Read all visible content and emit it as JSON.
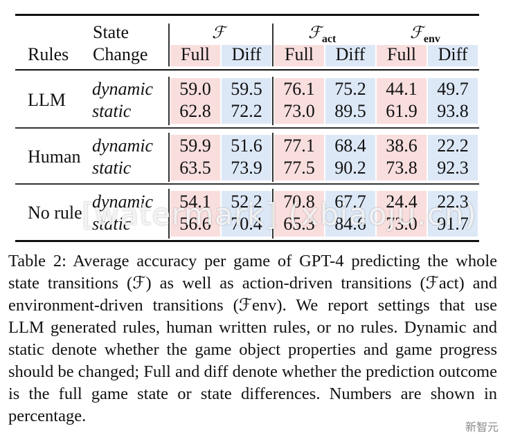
{
  "table": {
    "headers": {
      "rules": "Rules",
      "state_change_line1": "State",
      "state_change_line2": "Change",
      "group_f": "ℱ",
      "group_fact": "ℱ",
      "group_fact_sub": "act",
      "group_fenv": "ℱ",
      "group_fenv_sub": "env",
      "full": "Full",
      "diff": "Diff"
    },
    "rows": [
      {
        "rule": "LLM",
        "state": "dynamic",
        "values": [
          "59.0",
          "59.5",
          "76.1",
          "75.2",
          "44.1",
          "49.7"
        ]
      },
      {
        "rule": "",
        "state": "static",
        "values": [
          "62.8",
          "72.2",
          "73.0",
          "89.5",
          "61.9",
          "93.8"
        ]
      },
      {
        "rule": "Human",
        "state": "dynamic",
        "values": [
          "59.9",
          "51.6",
          "77.1",
          "68.4",
          "38.6",
          "22.2"
        ]
      },
      {
        "rule": "",
        "state": "static",
        "values": [
          "63.5",
          "73.9",
          "77.5",
          "90.2",
          "73.8",
          "92.3"
        ]
      },
      {
        "rule": "No rule",
        "state": "dynamic",
        "values": [
          "54.1",
          "52.2",
          "70.8",
          "67.7",
          "24.4",
          "22.3"
        ]
      },
      {
        "rule": "",
        "state": "static",
        "values": [
          "56.6",
          "70.4",
          "65.3",
          "84.6",
          "73.0",
          "91.7"
        ]
      }
    ]
  },
  "caption": "Table 2: Average accuracy per game of GPT-4 predicting the whole state transitions (ℱ) as well as action-driven transitions (ℱact) and environment-driven transitions (ℱenv). We report settings that use LLM generated rules, human written rules, or no rules. Dynamic and static denote whether the game object properties and game progress should be changed; Full and diff denote whether the prediction outcome is the full game state or state differences. Numbers are shown in percentage.",
  "watermark": "[watermark] (xbiaoju.cn)",
  "badge": "新智元",
  "colors": {
    "full_bg": "#f9dede",
    "diff_bg": "#dde8f7"
  }
}
